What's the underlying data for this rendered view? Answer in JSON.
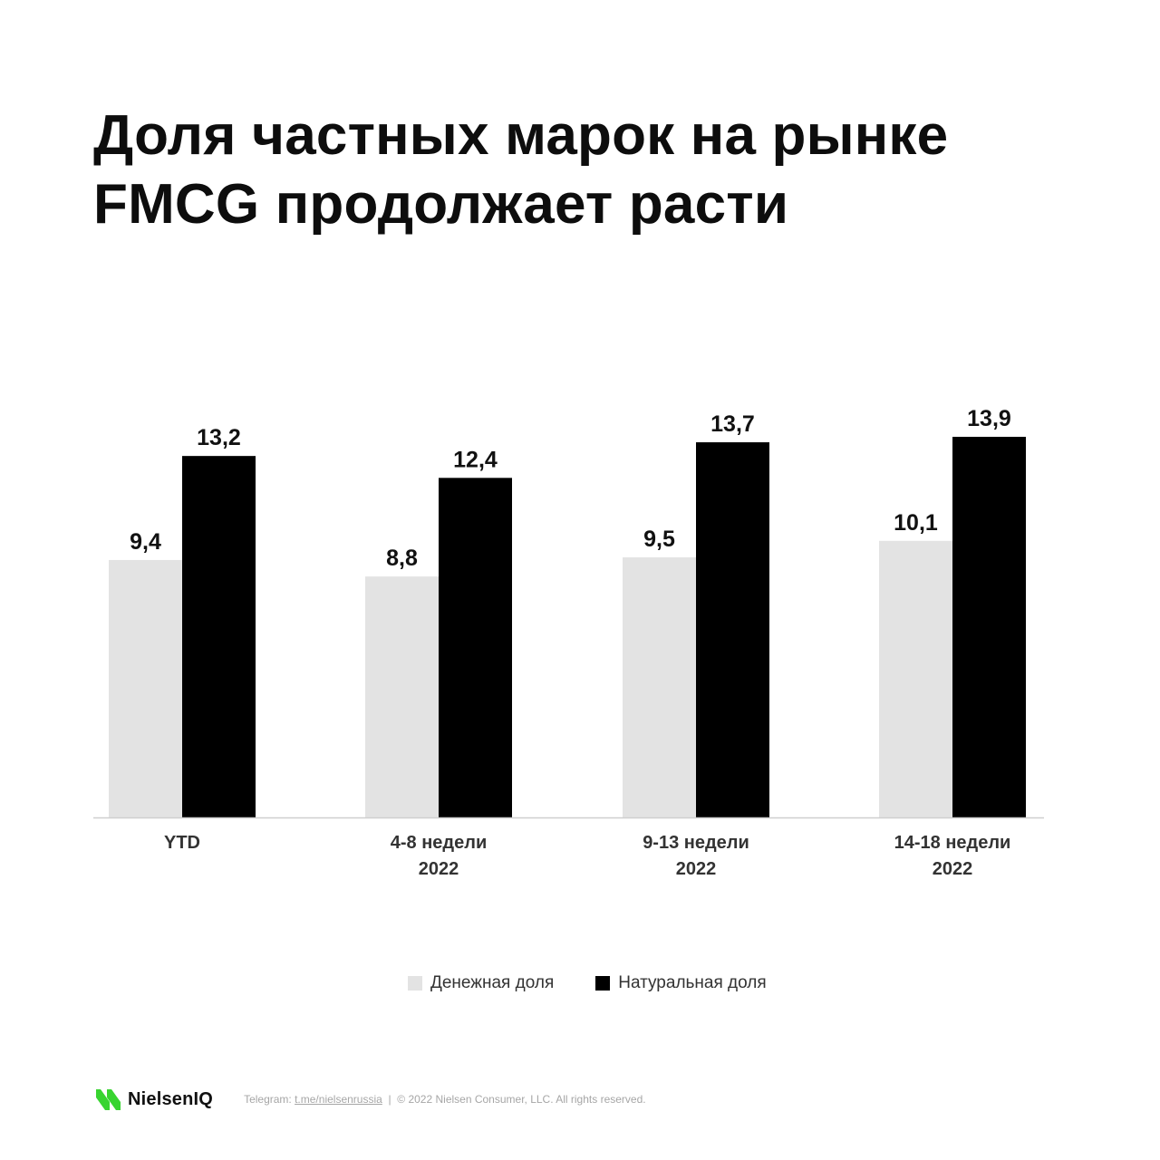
{
  "title": {
    "line1": "Доля частных марок на рынке",
    "line2": "FMCG продолжает расти"
  },
  "chart_data": {
    "type": "bar",
    "categories": [
      [
        "YTD"
      ],
      [
        "4-8 недели",
        "2022"
      ],
      [
        "9-13 недели",
        "2022"
      ],
      [
        "14-18 недели",
        "2022"
      ]
    ],
    "series": [
      {
        "name": "Денежная доля",
        "color": "#e3e3e3",
        "values": [
          9.4,
          8.8,
          9.5,
          10.1
        ],
        "labels": [
          "9,4",
          "8,8",
          "9,5",
          "10,1"
        ]
      },
      {
        "name": "Натуральная доля",
        "color": "#000000",
        "values": [
          13.2,
          12.4,
          13.7,
          13.9
        ],
        "labels": [
          "13,2",
          "12,4",
          "13,7",
          "13,9"
        ]
      }
    ],
    "ylim": [
      0,
      13.9
    ],
    "grid": false,
    "legend": "bottom-center"
  },
  "legend": {
    "items": [
      {
        "label": "Денежная доля",
        "color": "#e3e3e3"
      },
      {
        "label": "Натуральная доля",
        "color": "#000000"
      }
    ]
  },
  "footer": {
    "brand": "NielsenIQ",
    "brand_color": "#38d430",
    "logo_icon": "nielseniq-logo-icon",
    "telegram_prefix": "Telegram: ",
    "telegram_link": "t.me/nielsenrussia",
    "separator": "|",
    "copyright": "© 2022 Nielsen Consumer, LLC. All rights reserved."
  }
}
